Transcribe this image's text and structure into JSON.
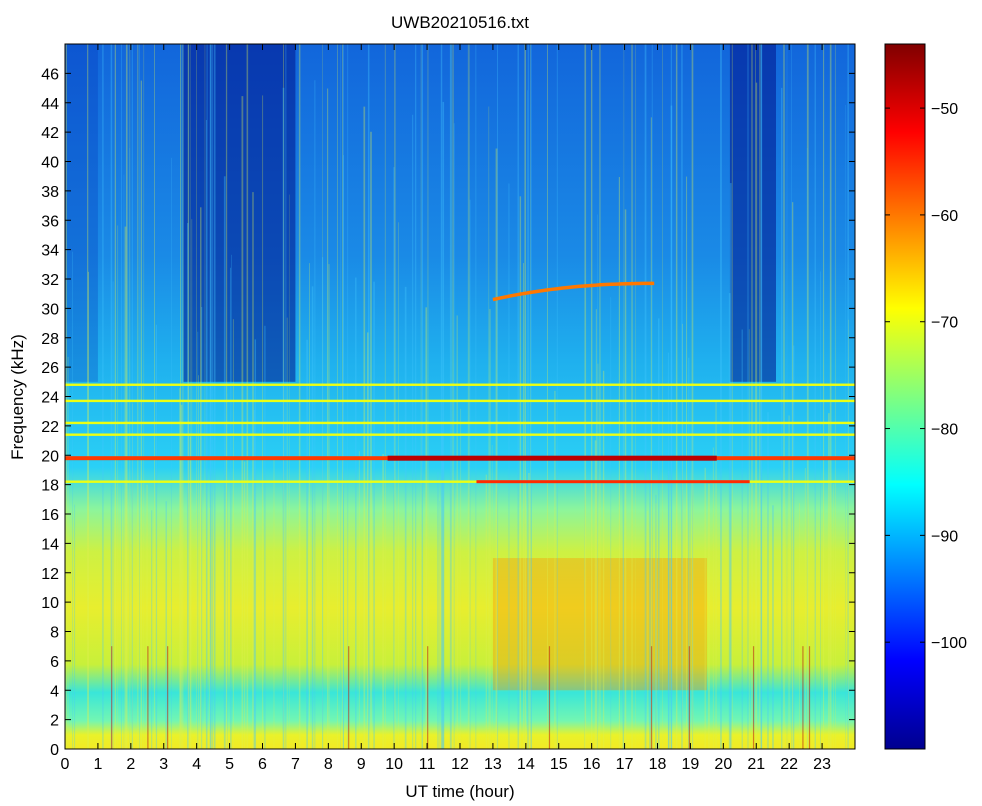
{
  "chart_data": {
    "type": "heatmap",
    "title": "UWB20210516.txt",
    "xlabel": "UT time (hour)",
    "ylabel": "Frequency (kHz)",
    "xlim": [
      0,
      24
    ],
    "ylim": [
      0,
      48
    ],
    "x_ticks": [
      "0",
      "1",
      "2",
      "3",
      "4",
      "5",
      "6",
      "7",
      "8",
      "9",
      "10",
      "11",
      "12",
      "13",
      "14",
      "15",
      "16",
      "17",
      "18",
      "19",
      "20",
      "21",
      "22",
      "23"
    ],
    "y_ticks": [
      "0",
      "2",
      "4",
      "6",
      "8",
      "10",
      "12",
      "14",
      "16",
      "18",
      "20",
      "22",
      "24",
      "26",
      "28",
      "30",
      "32",
      "34",
      "36",
      "38",
      "40",
      "42",
      "44",
      "46"
    ],
    "colorbar": {
      "label": "",
      "range": [
        -110,
        -44
      ],
      "ticks": [
        "−50",
        "−60",
        "−70",
        "−80",
        "−90",
        "−100"
      ],
      "colormap": "jet"
    },
    "features": {
      "narrowband_lines_khz": [
        18.2,
        19.8,
        21.4,
        22.2,
        23.7,
        24.8
      ],
      "broadband_levels": [
        {
          "f_low": 0,
          "f_high": 4,
          "level": -82
        },
        {
          "f_low": 4,
          "f_high": 16,
          "level": -72
        },
        {
          "f_low": 16,
          "f_high": 48,
          "level": -92
        }
      ],
      "curved_emission": {
        "x_start": 13.0,
        "x_end": 17.9,
        "f_start": 30.6,
        "f_end": 31.7,
        "level": -60
      }
    }
  }
}
